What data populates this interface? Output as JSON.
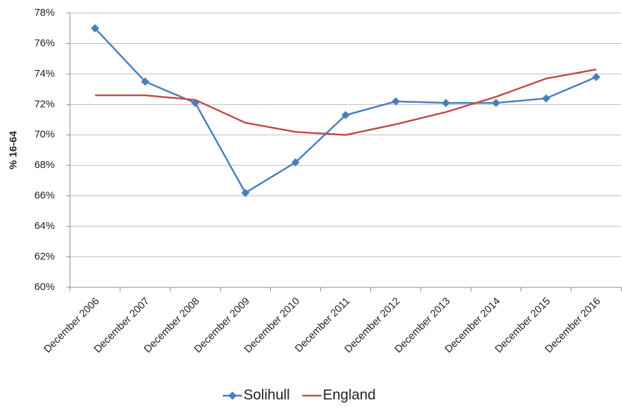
{
  "chart_data": {
    "type": "line",
    "y_label": "% 16-64",
    "categories": [
      "December 2006",
      "December 2007",
      "December 2008",
      "December 2009",
      "December 2010",
      "December 2011",
      "December 2012",
      "December 2013",
      "December 2014",
      "December 2015",
      "December 2016"
    ],
    "series": [
      {
        "name": "Solihull",
        "color": "#4a7ebb",
        "marker": "diamond",
        "values": [
          77.0,
          73.5,
          72.1,
          66.2,
          68.2,
          71.3,
          72.2,
          72.1,
          72.1,
          72.4,
          73.8
        ]
      },
      {
        "name": "England",
        "color": "#be4b48",
        "values": [
          72.6,
          72.6,
          72.3,
          70.8,
          70.2,
          70.0,
          70.7,
          71.5,
          72.5,
          73.7,
          74.3
        ]
      }
    ],
    "ylim": [
      60,
      78
    ],
    "yticks": [
      {
        "value": 60,
        "label": "60%"
      },
      {
        "value": 62,
        "label": "62%"
      },
      {
        "value": 64,
        "label": "64%"
      },
      {
        "value": 66,
        "label": "66%"
      },
      {
        "value": 68,
        "label": "68%"
      },
      {
        "value": 70,
        "label": "70%"
      },
      {
        "value": 72,
        "label": "72%"
      },
      {
        "value": 74,
        "label": "74%"
      },
      {
        "value": 76,
        "label": "76%"
      },
      {
        "value": 78,
        "label": "78%"
      }
    ],
    "grid": true,
    "legend": "bottom"
  }
}
